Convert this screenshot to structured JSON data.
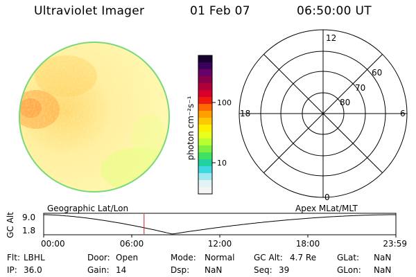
{
  "header": {
    "instrument": "Ultraviolet Imager",
    "date": "01 Feb 07",
    "time": "06:50:00 UT"
  },
  "colorbar": {
    "unit_label": "photon cm⁻²s⁻¹",
    "ticks": [
      "100",
      "10"
    ],
    "colors": [
      "#180030",
      "#3a005a",
      "#66006a",
      "#8a0048",
      "#b0003a",
      "#d8002a",
      "#f01a10",
      "#ff6a00",
      "#ffa000",
      "#ffc800",
      "#fff000",
      "#e8ff20",
      "#b8ff30",
      "#80f040",
      "#40e060",
      "#20d0a0",
      "#40d8e0",
      "#a0e8f0",
      "#e0f4f4",
      "#f4f4f4"
    ]
  },
  "polar": {
    "mlt_labels": {
      "top": "12",
      "right": "6",
      "bottom": "0",
      "left": "18"
    },
    "lat_labels": [
      "60",
      "70",
      "80"
    ]
  },
  "strip": {
    "left_label": "Geographic Lat/Lon",
    "right_label": "Apex MLat/MLT",
    "y_axis_title": "GC Alt",
    "y_ticks": [
      "9.0",
      "1.8"
    ],
    "x_ticks": [
      "00:00",
      "06:00",
      "12:00",
      "18:00",
      "23:59"
    ],
    "current_time_fraction": 0.285,
    "curve_min_fraction": 0.365
  },
  "info": {
    "flt_label": "Flt:",
    "flt_value": "LBHL",
    "ip_label": "IP:",
    "ip_value": "36.0",
    "door_label": "Door:",
    "door_value": "Open",
    "gain_label": "Gain:",
    "gain_value": "14",
    "mode_label": "Mode:",
    "mode_value": "Normal",
    "dsp_label": "Dsp:",
    "dsp_value": "NaN",
    "gcalt_label": "GC Alt:",
    "gcalt_value": "4.7 Re",
    "seq_label": "Seq:",
    "seq_value": "39",
    "glat_label": "GLat:",
    "glat_value": "NaN",
    "glon_label": "GLon:",
    "glon_value": "NaN"
  },
  "accent": {
    "time_marker": "#cc2020",
    "disk_edge": "#7ad87a"
  }
}
